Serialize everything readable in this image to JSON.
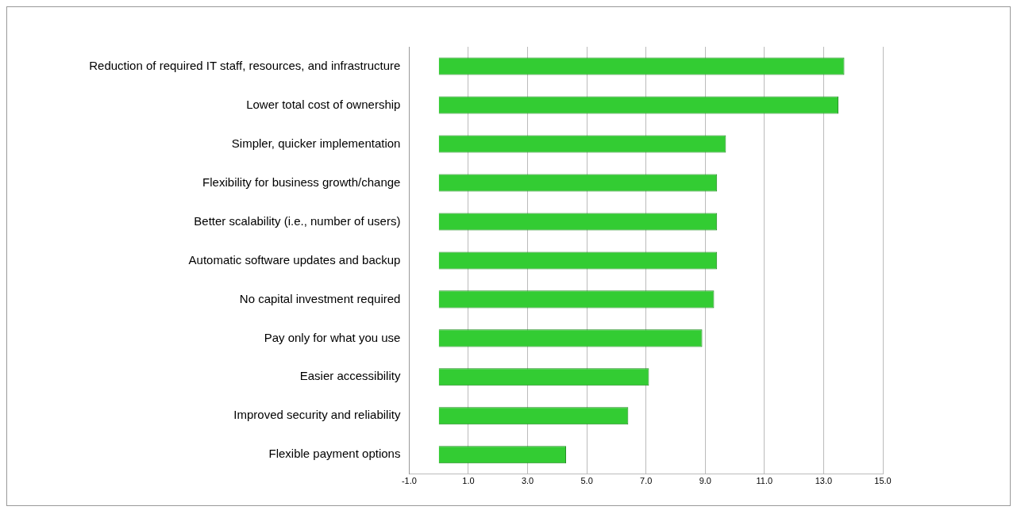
{
  "chart_data": {
    "type": "bar",
    "orientation": "horizontal",
    "categories": [
      "Reduction of required IT staff, resources, and infrastructure",
      "Lower total cost of ownership",
      "Simpler, quicker implementation",
      "Flexibility for business growth/change",
      "Better scalability (i.e., number of users)",
      "Automatic software updates and backup",
      "No capital investment required",
      "Pay only for what you use",
      "Easier accessibility",
      "Improved security and reliability",
      "Flexible payment options"
    ],
    "values": [
      13.7,
      13.5,
      9.7,
      9.4,
      9.4,
      9.4,
      9.3,
      8.9,
      7.1,
      6.4,
      4.3
    ],
    "color": "#33cc33",
    "xlim": [
      -1,
      15
    ],
    "xticks": [
      {
        "value": -1,
        "label": "-1.0"
      },
      {
        "value": 1,
        "label": "1.0"
      },
      {
        "value": 3,
        "label": "3.0"
      },
      {
        "value": 5,
        "label": "5.0"
      },
      {
        "value": 7,
        "label": "7.0"
      },
      {
        "value": 9,
        "label": "9.0"
      },
      {
        "value": 11,
        "label": "11.0"
      },
      {
        "value": 13,
        "label": "13.0"
      },
      {
        "value": 15,
        "label": "15.0"
      }
    ],
    "grid": "x",
    "legend": false
  }
}
